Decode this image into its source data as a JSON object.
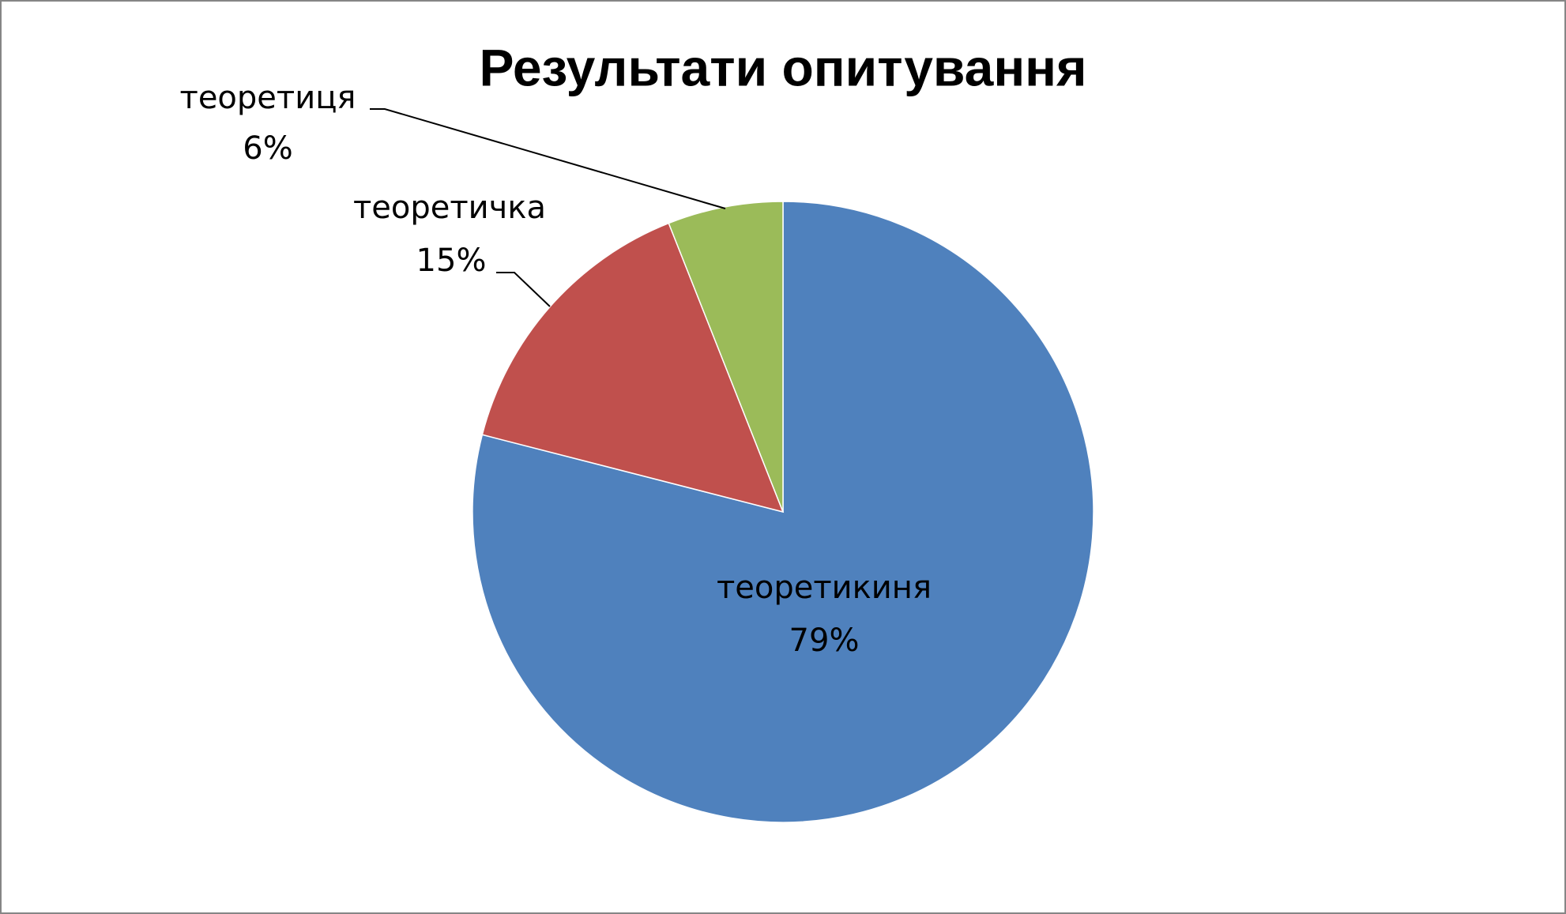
{
  "chart_data": {
    "type": "pie",
    "title": "Результати опитування",
    "categories": [
      "теоретикиня",
      "теоретичка",
      "теоретиця"
    ],
    "values": [
      79,
      15,
      6
    ],
    "value_labels": [
      "79%",
      "15%",
      "6%"
    ],
    "colors": [
      "#4f81bd",
      "#c0504d",
      "#9bbb59"
    ]
  }
}
